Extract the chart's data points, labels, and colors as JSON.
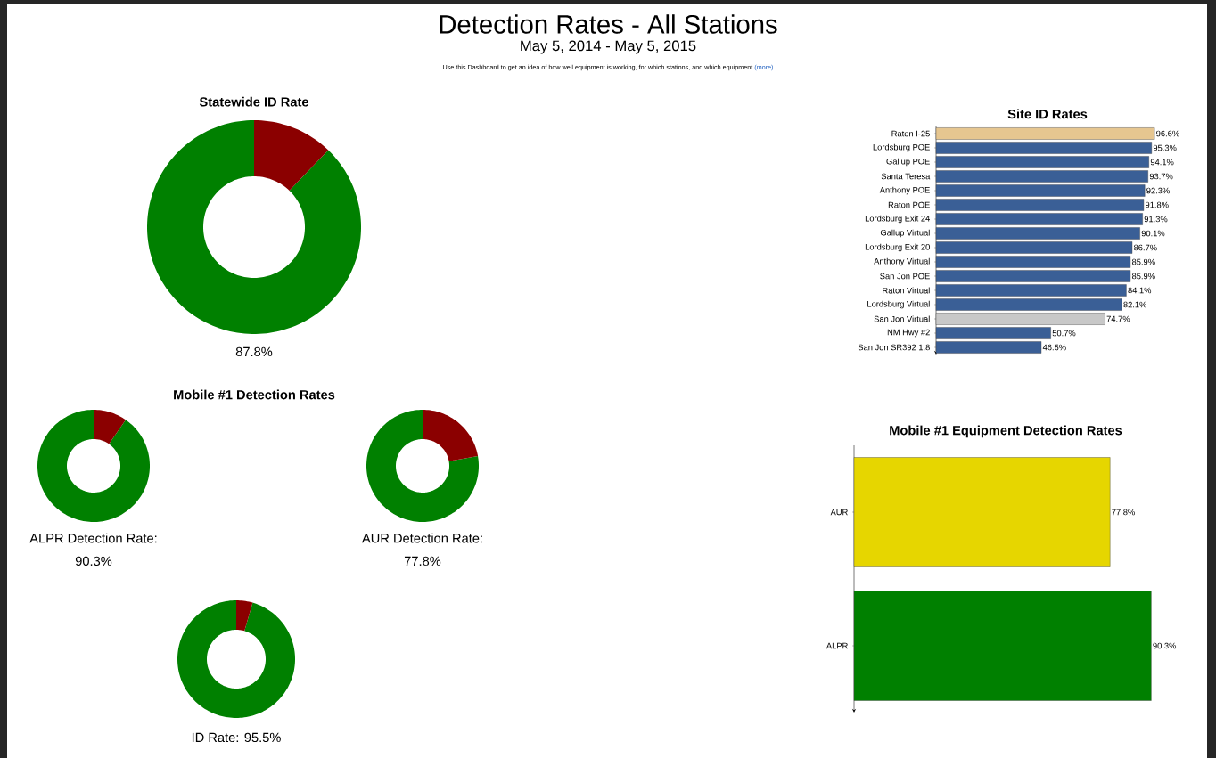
{
  "chart_data": [
    {
      "type": "other",
      "title": "Detection Rates - All Stations",
      "subtitle": "May 5, 2014 - May 5, 2015",
      "annotations": [
        "Use this Dashboard to get an idea of how well equipment is working, for which stations, and which equipment",
        "(more)"
      ]
    },
    {
      "type": "donut",
      "title": "Statewide ID Rate",
      "categories": [
        null,
        null
      ],
      "values": [
        87.8,
        12.2
      ],
      "colors": [
        "#008000",
        "#8b0000"
      ],
      "annotations": [
        "87.8%"
      ]
    },
    {
      "type": "bar",
      "orientation": "horizontal",
      "title": "Site ID Rates",
      "categories": [
        "Raton I-25",
        "Lordsburg POE",
        "Gallup POE",
        "Santa Teresa",
        "Anthony POE",
        "Raton POE",
        "Lordsburg Exit 24",
        "Gallup Virtual",
        "Lordsburg Exit 20",
        "Anthony Virtual",
        "San Jon POE",
        "Raton Virtual",
        "Lordsburg Virtual",
        "San Jon Virtual",
        "NM Hwy #2",
        "San Jon SR392 1.8"
      ],
      "values": [
        96.6,
        95.3,
        94.1,
        93.7,
        92.3,
        91.8,
        91.3,
        90.1,
        86.7,
        85.9,
        85.9,
        84.1,
        82.1,
        74.7,
        50.7,
        46.5
      ],
      "value_labels": [
        "96.6%",
        "95.3%",
        "94.1%",
        "93.7%",
        "92.3%",
        "91.8%",
        "91.3%",
        "90.1%",
        "86.7%",
        "85.9%",
        "85.9%",
        "84.1%",
        "82.1%",
        "74.7%",
        "50.7%",
        "46.5%"
      ],
      "colors": [
        "#e6c690",
        "#3a5f96",
        "#3a5f96",
        "#3a5f96",
        "#3a5f96",
        "#3a5f96",
        "#3a5f96",
        "#3a5f96",
        "#3a5f96",
        "#3a5f96",
        "#3a5f96",
        "#3a5f96",
        "#3a5f96",
        "#c8c8c8",
        "#3a5f96",
        "#3a5f96"
      ]
    },
    {
      "type": "other",
      "title": "Mobile #1 Detection Rates"
    },
    {
      "type": "donut",
      "categories": [
        null,
        null
      ],
      "values": [
        90.3,
        9.7
      ],
      "colors": [
        "#008000",
        "#8b0000"
      ],
      "annotations": [
        "ALPR Detection Rate:",
        "90.3%"
      ]
    },
    {
      "type": "donut",
      "categories": [
        null,
        null
      ],
      "values": [
        77.8,
        22.2
      ],
      "colors": [
        "#008000",
        "#8b0000"
      ],
      "annotations": [
        "AUR Detection Rate:",
        "77.8%"
      ]
    },
    {
      "type": "bar",
      "orientation": "horizontal",
      "title": "Mobile #1 Equipment Detection Rates",
      "categories": [
        "AUR",
        "ALPR"
      ],
      "values": [
        77.8,
        90.3
      ],
      "value_labels": [
        "77.8%",
        "90.3%"
      ],
      "colors": [
        "#e6d600",
        "#008000"
      ]
    },
    {
      "type": "donut",
      "categories": [
        null,
        null
      ],
      "values": [
        95.5,
        4.5
      ],
      "colors": [
        "#008000",
        "#8b0000"
      ],
      "annotations": [
        "ID Rate: 95.5%"
      ]
    }
  ]
}
